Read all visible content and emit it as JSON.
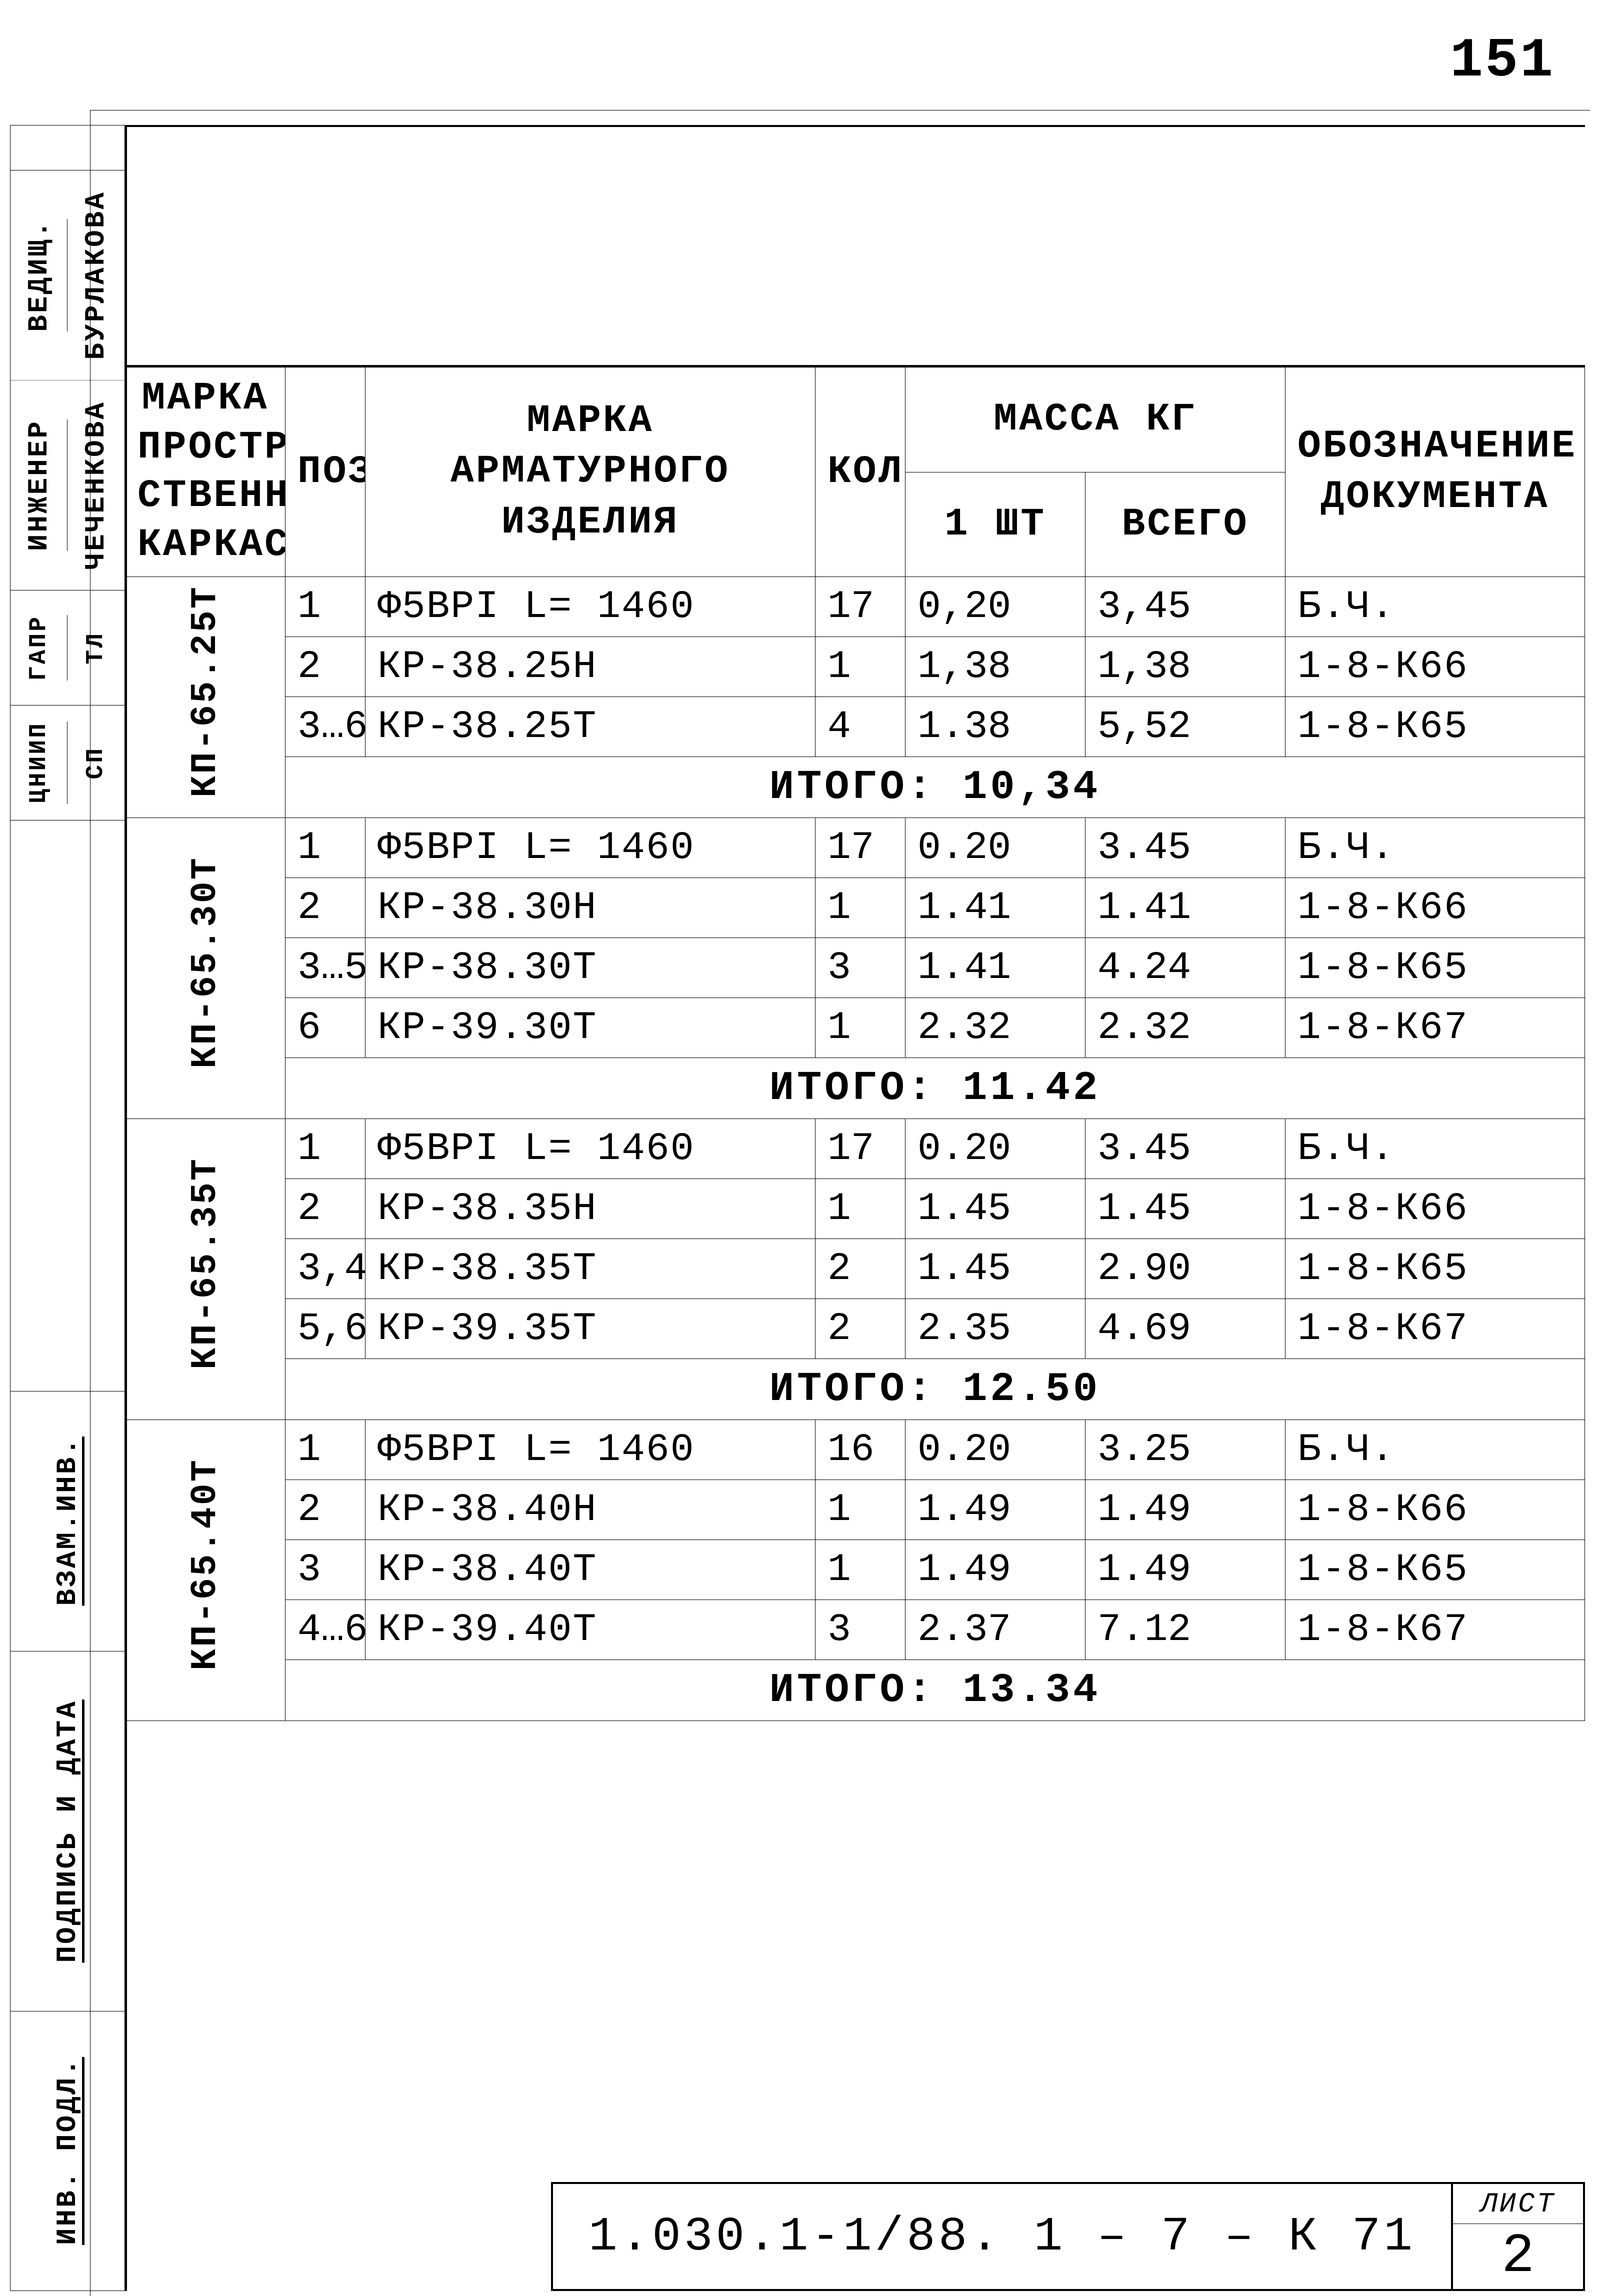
{
  "page_number": "151",
  "colors": {
    "ink": "#000000",
    "paper": "#ffffff"
  },
  "left_strip": {
    "top_pairs": [
      {
        "a": "ВЕДИЩ.",
        "b": "БУРЛАКОВА"
      },
      {
        "a": "ИНЖЕНЕР",
        "b": "ЧЕЧЕНКОВА"
      }
    ],
    "mid_pairs": [
      {
        "a": "ГАПР",
        "b": "ТЛ"
      },
      {
        "a": "ЦНИИП",
        "b": "СП"
      }
    ],
    "lower": [
      "ВЗАМ.ИНВ.",
      "ПОДПИСЬ И ДАТА",
      "ИНВ. ПОДЛ."
    ],
    "lower_small": "ИНВ  ПОДЛ."
  },
  "table": {
    "headers": {
      "mark": "МАРКА ПРОСТРА СТВЕННОГО КАРКАСА",
      "poz": "ПОЗ.",
      "product": "МАРКА АРМАТУРНОГО ИЗДЕЛИЯ",
      "kol": "КОЛ.",
      "mass": "МАССА КГ",
      "mass_one": "1 ШТ",
      "mass_all": "ВСЕГО",
      "doc": "ОБОЗНАЧЕНИЕ ДОКУМЕНТА"
    },
    "groups": [
      {
        "mark": "КП-65.25Т",
        "rows": [
          {
            "poz": "1",
            "prod": "Ф5ВРI    L= 1460",
            "kol": "17",
            "m1": "0,20",
            "m2": "3,45",
            "doc": "Б.Ч."
          },
          {
            "poz": "2",
            "prod": "КР-38.25Н",
            "kol": "1",
            "m1": "1,38",
            "m2": "1,38",
            "doc": "1-8-К66"
          },
          {
            "poz": "3…6",
            "prod": "КР-38.25Т",
            "kol": "4",
            "m1": "1.38",
            "m2": "5,52",
            "doc": "1-8-К65",
            "poz_dotted": true
          }
        ],
        "total": "ИТОГО:  10,34"
      },
      {
        "mark": "КП-65.30Т",
        "rows": [
          {
            "poz": "1",
            "prod": "Ф5ВРI    L= 1460",
            "kol": "17",
            "m1": "0.20",
            "m2": "3.45",
            "doc": "Б.Ч."
          },
          {
            "poz": "2",
            "prod": "КР-38.30Н",
            "kol": "1",
            "m1": "1.41",
            "m2": "1.41",
            "doc": "1-8-К66"
          },
          {
            "poz": "3…5",
            "prod": "КР-38.30Т",
            "kol": "3",
            "m1": "1.41",
            "m2": "4.24",
            "doc": "1-8-К65",
            "poz_dotted": true
          },
          {
            "poz": "6",
            "prod": "КР-39.30Т",
            "kol": "1",
            "m1": "2.32",
            "m2": "2.32",
            "doc": "1-8-К67"
          }
        ],
        "total": "ИТОГО:  11.42"
      },
      {
        "mark": "КП-65.35Т",
        "rows": [
          {
            "poz": "1",
            "prod": "Ф5ВРI    L= 1460",
            "kol": "17",
            "m1": "0.20",
            "m2": "3.45",
            "doc": "Б.Ч."
          },
          {
            "poz": "2",
            "prod": "КР-38.35Н",
            "kol": "1",
            "m1": "1.45",
            "m2": "1.45",
            "doc": "1-8-К66"
          },
          {
            "poz": "3,4",
            "prod": "КР-38.35Т",
            "kol": "2",
            "m1": "1.45",
            "m2": "2.90",
            "doc": "1-8-К65"
          },
          {
            "poz": "5,6",
            "prod": "КР-39.35Т",
            "kol": "2",
            "m1": "2.35",
            "m2": "4.69",
            "doc": "1-8-К67"
          }
        ],
        "total": "ИТОГО:  12.50"
      },
      {
        "mark": "КП-65.40Т",
        "rows": [
          {
            "poz": "1",
            "prod": "Ф5ВРI    L= 1460",
            "kol": "16",
            "m1": "0.20",
            "m2": "3.25",
            "doc": "Б.Ч."
          },
          {
            "poz": "2",
            "prod": "КР-38.40Н",
            "kol": "1",
            "m1": "1.49",
            "m2": "1.49",
            "doc": "1-8-К66"
          },
          {
            "poz": "3",
            "prod": "КР-38.40Т",
            "kol": "1",
            "m1": "1.49",
            "m2": "1.49",
            "doc": "1-8-К65"
          },
          {
            "poz": "4…6",
            "prod": "КР-39.40Т",
            "kol": "3",
            "m1": "2.37",
            "m2": "7.12",
            "doc": "1-8-К67"
          }
        ],
        "total": "ИТОГО:  13.34"
      }
    ]
  },
  "title_block": {
    "doc_number": "1.030.1-1/88.   1 – 7 – К 71",
    "sheet_label": "ЛИСТ",
    "sheet_number": "2"
  }
}
